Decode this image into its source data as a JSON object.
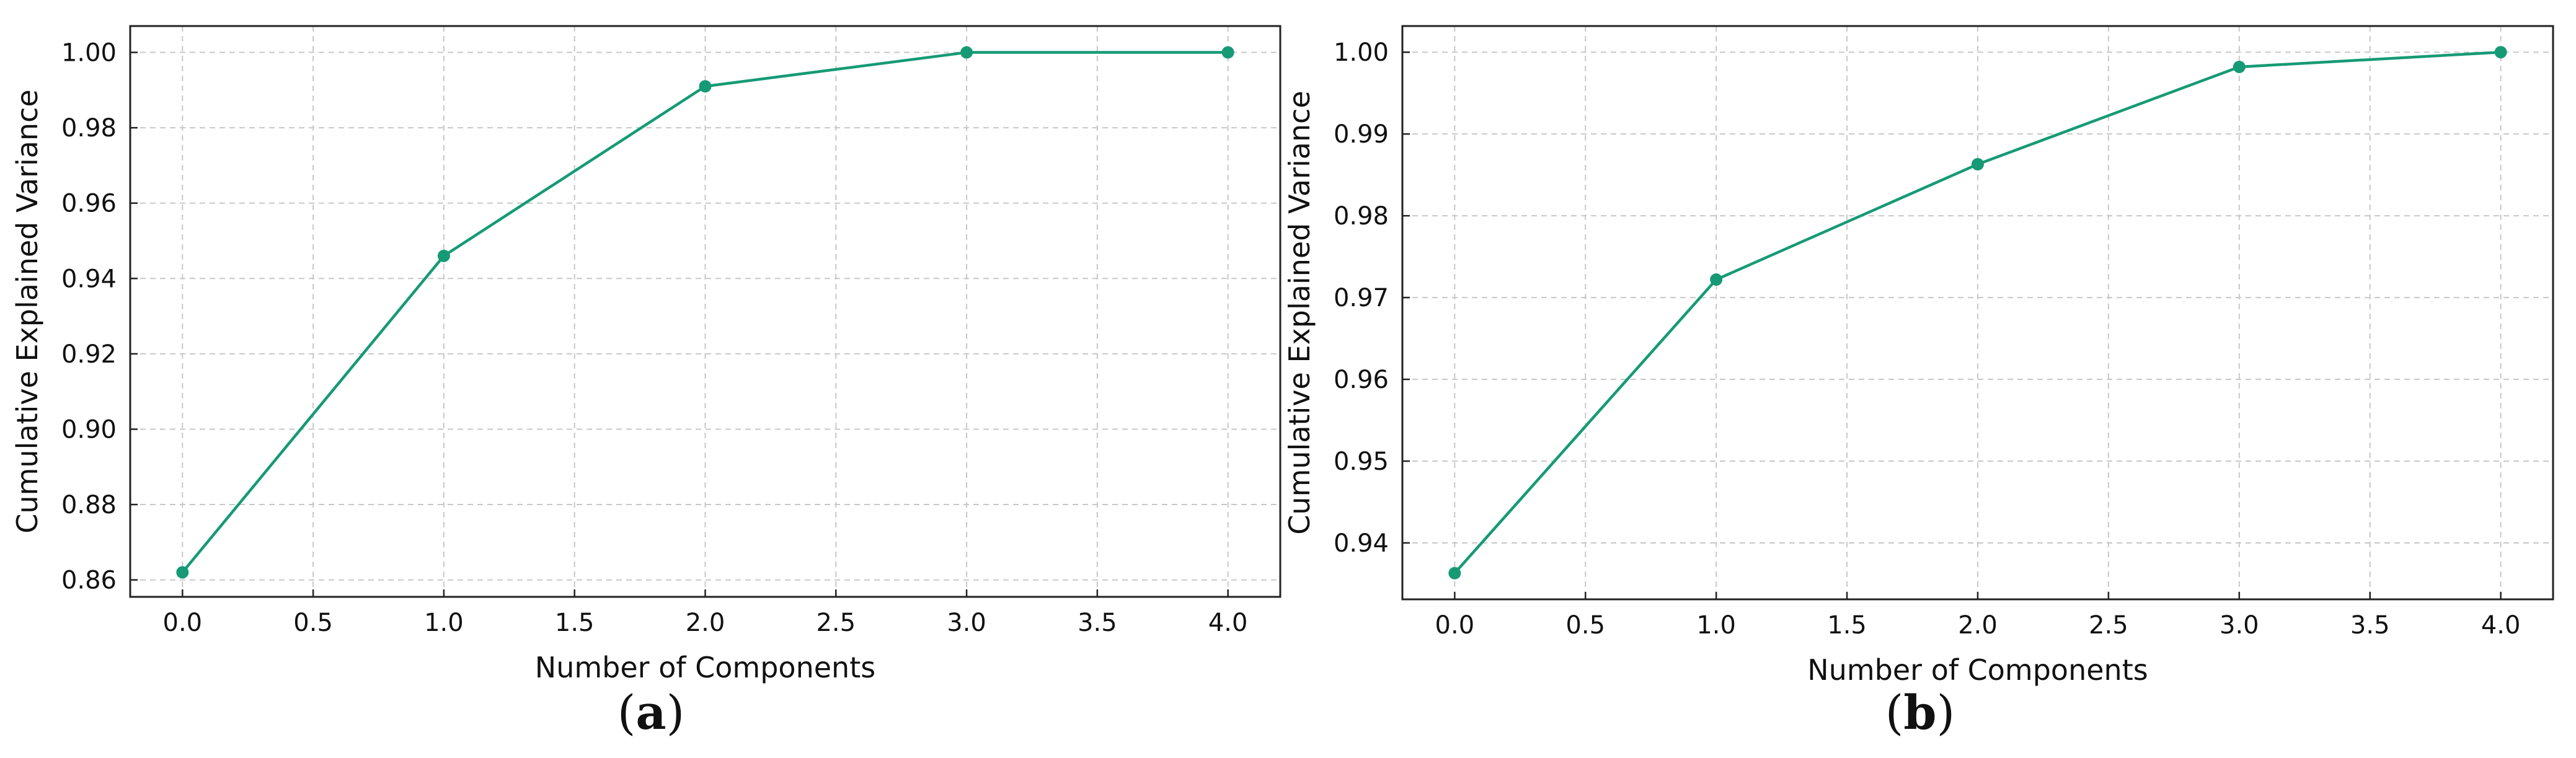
{
  "accent_color": "#169a76",
  "chart_data": [
    {
      "id": "a",
      "type": "line",
      "caption_letter": "a",
      "xlabel": "Number of Components",
      "ylabel": "Cumulative Explained Variance",
      "x": [
        0,
        1,
        2,
        3,
        4
      ],
      "series": [
        {
          "values": [
            0.862,
            0.946,
            0.991,
            1.0,
            1.0
          ]
        }
      ],
      "xlim": [
        -0.2,
        4.2
      ],
      "ylim": [
        0.8555,
        1.007
      ],
      "xticks": [
        0.0,
        0.5,
        1.0,
        1.5,
        2.0,
        2.5,
        3.0,
        3.5,
        4.0
      ],
      "xtick_labels": [
        "0.0",
        "0.5",
        "1.0",
        "1.5",
        "2.0",
        "2.5",
        "3.0",
        "3.5",
        "4.0"
      ],
      "yticks": [
        0.86,
        0.88,
        0.9,
        0.92,
        0.94,
        0.96,
        0.98,
        1.0
      ],
      "ytick_labels": [
        "0.86",
        "0.88",
        "0.90",
        "0.92",
        "0.94",
        "0.96",
        "0.98",
        "1.00"
      ],
      "grid": true,
      "marker": "circle"
    },
    {
      "id": "b",
      "type": "line",
      "caption_letter": "b",
      "xlabel": "Number of Components",
      "ylabel": "Cumulative Explained Variance",
      "x": [
        0,
        1,
        2,
        3,
        4
      ],
      "series": [
        {
          "values": [
            0.9363,
            0.9722,
            0.9863,
            0.9982,
            1.0
          ]
        }
      ],
      "xlim": [
        -0.2,
        4.2
      ],
      "ylim": [
        0.9331,
        1.0032
      ],
      "xticks": [
        0.0,
        0.5,
        1.0,
        1.5,
        2.0,
        2.5,
        3.0,
        3.5,
        4.0
      ],
      "xtick_labels": [
        "0.0",
        "0.5",
        "1.0",
        "1.5",
        "2.0",
        "2.5",
        "3.0",
        "3.5",
        "4.0"
      ],
      "yticks": [
        0.94,
        0.95,
        0.96,
        0.97,
        0.98,
        0.99,
        1.0
      ],
      "ytick_labels": [
        "0.94",
        "0.95",
        "0.96",
        "0.97",
        "0.98",
        "0.99",
        "1.00"
      ],
      "grid": true,
      "marker": "circle"
    }
  ]
}
